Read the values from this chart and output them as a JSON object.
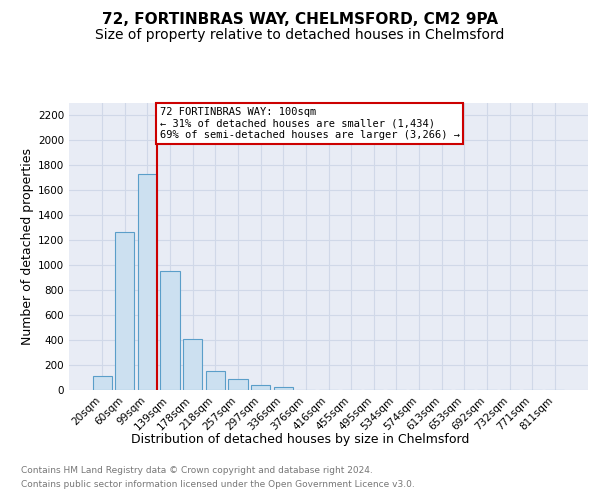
{
  "title": "72, FORTINBRAS WAY, CHELMSFORD, CM2 9PA",
  "subtitle": "Size of property relative to detached houses in Chelmsford",
  "xlabel": "Distribution of detached houses by size in Chelmsford",
  "ylabel": "Number of detached properties",
  "footer_line1": "Contains HM Land Registry data © Crown copyright and database right 2024.",
  "footer_line2": "Contains public sector information licensed under the Open Government Licence v3.0.",
  "categories": [
    "20sqm",
    "60sqm",
    "99sqm",
    "139sqm",
    "178sqm",
    "218sqm",
    "257sqm",
    "297sqm",
    "336sqm",
    "376sqm",
    "416sqm",
    "455sqm",
    "495sqm",
    "534sqm",
    "574sqm",
    "613sqm",
    "653sqm",
    "692sqm",
    "732sqm",
    "771sqm",
    "811sqm"
  ],
  "values": [
    110,
    1265,
    1730,
    950,
    405,
    150,
    85,
    40,
    25,
    0,
    0,
    0,
    0,
    0,
    0,
    0,
    0,
    0,
    0,
    0,
    0
  ],
  "bar_color": "#cce0f0",
  "bar_edge_color": "#5a9ec9",
  "property_line_bar_index": 2,
  "annotation_text": "72 FORTINBRAS WAY: 100sqm\n← 31% of detached houses are smaller (1,434)\n69% of semi-detached houses are larger (3,266) →",
  "annotation_box_color": "#ffffff",
  "annotation_box_edge_color": "#cc0000",
  "red_line_color": "#cc0000",
  "ylim": [
    0,
    2300
  ],
  "yticks": [
    0,
    200,
    400,
    600,
    800,
    1000,
    1200,
    1400,
    1600,
    1800,
    2000,
    2200
  ],
  "grid_color": "#d0d8e8",
  "bg_color": "#e8ecf5",
  "title_fontsize": 11,
  "subtitle_fontsize": 10,
  "xlabel_fontsize": 9,
  "ylabel_fontsize": 9,
  "tick_fontsize": 7.5,
  "annotation_fontsize": 7.5,
  "footer_fontsize": 6.5,
  "footer_color": "#777777"
}
